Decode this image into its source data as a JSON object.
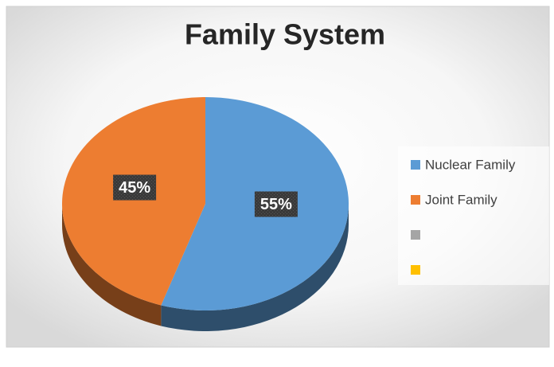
{
  "chart_data": {
    "type": "pie",
    "title": "Family System",
    "categories": [
      "Nuclear Family",
      "Joint Family",
      null,
      null
    ],
    "values": [
      55,
      45,
      null,
      null
    ],
    "value_labels": [
      "55%",
      "45%",
      null,
      null
    ],
    "colors": [
      "#5b9bd5",
      "#ed7d31",
      "#a5a5a5",
      "#ffc000"
    ],
    "legend": "right"
  }
}
